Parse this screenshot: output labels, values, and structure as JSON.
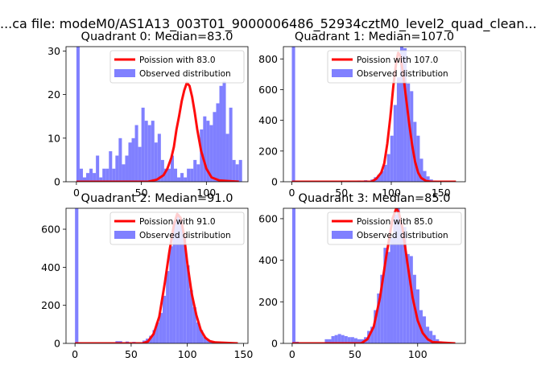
{
  "figure": {
    "suptitle": "...ca file: modeM0/AS1A13_003T01_9000006486_52934cztM0_level2_quad_clean..."
  },
  "colors": {
    "fit": "#ff0000",
    "observed": "#8080ff"
  },
  "chart_data": [
    {
      "type": "bar",
      "title": "Quadrant 0: Median=83.0",
      "xlabel": "",
      "ylabel": "",
      "xlim": [
        -8,
        132
      ],
      "ylim": [
        0,
        31
      ],
      "xticks": [
        0,
        50,
        100
      ],
      "yticks": [
        0,
        10,
        20,
        30
      ],
      "bin_width": 2.5,
      "legend": {
        "position": "top-right",
        "fit_label": "Poission with 83.0",
        "observed_label": "Observed distribution"
      },
      "series": [
        {
          "name": "Observed distribution",
          "kind": "hist",
          "bins": [
            [
              0,
              31
            ],
            [
              2.5,
              3
            ],
            [
              5,
              1
            ],
            [
              7.5,
              2
            ],
            [
              10,
              3
            ],
            [
              12.5,
              2
            ],
            [
              15,
              6
            ],
            [
              17.5,
              1
            ],
            [
              20,
              3
            ],
            [
              22.5,
              3
            ],
            [
              25,
              7
            ],
            [
              27.5,
              3
            ],
            [
              30,
              6
            ],
            [
              32.5,
              10
            ],
            [
              35,
              4
            ],
            [
              37.5,
              6
            ],
            [
              40,
              9
            ],
            [
              42.5,
              10
            ],
            [
              45,
              13
            ],
            [
              47.5,
              8
            ],
            [
              50,
              17
            ],
            [
              52.5,
              14
            ],
            [
              55,
              13
            ],
            [
              57.5,
              14
            ],
            [
              60,
              9
            ],
            [
              62.5,
              11
            ],
            [
              65,
              5
            ],
            [
              67.5,
              3
            ],
            [
              70,
              3
            ],
            [
              72.5,
              6
            ],
            [
              75,
              3
            ],
            [
              77.5,
              1
            ],
            [
              80,
              2
            ],
            [
              82.5,
              1
            ],
            [
              85,
              3
            ],
            [
              87.5,
              3
            ],
            [
              90,
              5
            ],
            [
              92.5,
              4
            ],
            [
              95,
              12
            ],
            [
              97.5,
              15
            ],
            [
              100,
              14
            ],
            [
              102.5,
              13
            ],
            [
              105,
              16
            ],
            [
              107.5,
              18
            ],
            [
              110,
              22
            ],
            [
              112.5,
              23
            ],
            [
              115,
              11
            ],
            [
              117.5,
              17
            ],
            [
              120,
              5
            ],
            [
              122.5,
              4
            ],
            [
              125,
              5
            ]
          ]
        },
        {
          "name": "Poission with 83.0",
          "kind": "line",
          "x": [
            0,
            55,
            62,
            67,
            70,
            73,
            75,
            77,
            79,
            81,
            83,
            85,
            87,
            89,
            91,
            93,
            96,
            100,
            104,
            110,
            125
          ],
          "y": [
            0,
            0,
            0.5,
            1.5,
            3,
            5.5,
            8,
            12,
            15,
            18.5,
            21,
            22.7,
            22,
            19.5,
            16,
            12,
            7,
            3,
            1,
            0.3,
            0
          ]
        }
      ]
    },
    {
      "type": "bar",
      "title": "Quadrant 1: Median=107.0",
      "xlabel": "",
      "ylabel": "",
      "xlim": [
        -8.5,
        174.5
      ],
      "ylim": [
        0,
        880
      ],
      "xticks": [
        0,
        50,
        100,
        150
      ],
      "yticks": [
        0,
        200,
        400,
        600,
        800
      ],
      "bin_width": 3.3,
      "legend": {
        "position": "top-right",
        "fit_label": "Poission with 107.0",
        "observed_label": "Observed distribution"
      },
      "series": [
        {
          "name": "Observed distribution",
          "kind": "hist",
          "bins": [
            [
              0,
              880
            ],
            [
              3.3,
              5
            ],
            [
              40,
              3
            ],
            [
              56,
              5
            ],
            [
              66,
              8
            ],
            [
              72.6,
              10
            ],
            [
              79.2,
              15
            ],
            [
              82.5,
              30
            ],
            [
              85.8,
              45
            ],
            [
              89.1,
              70
            ],
            [
              92.4,
              110
            ],
            [
              95.7,
              180
            ],
            [
              99,
              300
            ],
            [
              102.3,
              500
            ],
            [
              105.6,
              680
            ],
            [
              108.9,
              880
            ],
            [
              112.2,
              870
            ],
            [
              115.5,
              640
            ],
            [
              118.8,
              590
            ],
            [
              122.1,
              390
            ],
            [
              125.4,
              300
            ],
            [
              128.7,
              150
            ],
            [
              132,
              70
            ],
            [
              135.3,
              35
            ],
            [
              138.6,
              15
            ],
            [
              141.9,
              8
            ],
            [
              145.2,
              4
            ]
          ]
        },
        {
          "name": "Poission with 107.0",
          "kind": "line",
          "x": [
            0,
            80,
            85,
            90,
            93,
            96,
            99,
            102,
            105,
            107,
            109,
            112,
            115,
            118,
            121,
            124,
            127,
            130,
            135,
            140,
            165
          ],
          "y": [
            0,
            0,
            20,
            60,
            120,
            250,
            420,
            620,
            780,
            840,
            820,
            700,
            540,
            380,
            240,
            130,
            60,
            25,
            5,
            0,
            0
          ]
        }
      ]
    },
    {
      "type": "bar",
      "title": "Quadrant 2: Median=91.0",
      "xlabel": "",
      "ylabel": "",
      "xlim": [
        -8,
        154
      ],
      "ylim": [
        0,
        710
      ],
      "xticks": [
        0,
        50,
        100,
        150
      ],
      "yticks": [
        0,
        200,
        400,
        600
      ],
      "bin_width": 3,
      "legend": {
        "position": "top-right",
        "fit_label": "Poission with 91.0",
        "observed_label": "Observed distribution"
      },
      "series": [
        {
          "name": "Observed distribution",
          "kind": "hist",
          "bins": [
            [
              0,
              710
            ],
            [
              3,
              5
            ],
            [
              36,
              12
            ],
            [
              39,
              12
            ],
            [
              45,
              10
            ],
            [
              51,
              8
            ],
            [
              60,
              15
            ],
            [
              63,
              25
            ],
            [
              66,
              40
            ],
            [
              69,
              70
            ],
            [
              72,
              110
            ],
            [
              75,
              160
            ],
            [
              78,
              250
            ],
            [
              81,
              380
            ],
            [
              84,
              510
            ],
            [
              87,
              640
            ],
            [
              90,
              680
            ],
            [
              93,
              650
            ],
            [
              96,
              560
            ],
            [
              99,
              410
            ],
            [
              102,
              280
            ],
            [
              105,
              190
            ],
            [
              108,
              110
            ],
            [
              111,
              70
            ],
            [
              114,
              35
            ],
            [
              117,
              20
            ],
            [
              120,
              10
            ],
            [
              123,
              6
            ],
            [
              126,
              4
            ]
          ]
        },
        {
          "name": "Poission with 91.0",
          "kind": "line",
          "x": [
            0,
            60,
            65,
            70,
            75,
            80,
            84,
            88,
            91,
            94,
            97,
            100,
            104,
            108,
            112,
            116,
            120,
            125,
            145
          ],
          "y": [
            0,
            0,
            10,
            50,
            140,
            320,
            480,
            620,
            680,
            660,
            570,
            420,
            260,
            150,
            70,
            30,
            12,
            5,
            0
          ]
        }
      ]
    },
    {
      "type": "bar",
      "title": "Quadrant 3: Median=85.0",
      "xlabel": "",
      "ylabel": "",
      "xlim": [
        -7,
        138
      ],
      "ylim": [
        0,
        650
      ],
      "xticks": [
        0,
        50,
        100
      ],
      "yticks": [
        0,
        200,
        400,
        600
      ],
      "bin_width": 2.6,
      "legend": {
        "position": "top-right",
        "fit_label": "Poission with 85.0",
        "observed_label": "Observed distribution"
      },
      "series": [
        {
          "name": "Observed distribution",
          "kind": "hist",
          "bins": [
            [
              0,
              650
            ],
            [
              2.6,
              8
            ],
            [
              26,
              20
            ],
            [
              28.6,
              20
            ],
            [
              31.2,
              35
            ],
            [
              33.8,
              40
            ],
            [
              36.4,
              45
            ],
            [
              39,
              40
            ],
            [
              41.6,
              35
            ],
            [
              44.2,
              30
            ],
            [
              46.8,
              30
            ],
            [
              49.4,
              25
            ],
            [
              52,
              20
            ],
            [
              54.6,
              20
            ],
            [
              57.2,
              30
            ],
            [
              59.8,
              60
            ],
            [
              62.4,
              80
            ],
            [
              65,
              160
            ],
            [
              67.6,
              240
            ],
            [
              70.2,
              330
            ],
            [
              72.8,
              460
            ],
            [
              75.4,
              440
            ],
            [
              78,
              510
            ],
            [
              80.6,
              620
            ],
            [
              83.2,
              650
            ],
            [
              85.8,
              580
            ],
            [
              88.4,
              560
            ],
            [
              91,
              430
            ],
            [
              93.6,
              420
            ],
            [
              96.2,
              330
            ],
            [
              98.8,
              260
            ],
            [
              101.4,
              160
            ],
            [
              104,
              130
            ],
            [
              106.6,
              80
            ],
            [
              109.2,
              60
            ],
            [
              111.8,
              40
            ],
            [
              114.4,
              20
            ],
            [
              117,
              10
            ],
            [
              119.6,
              5
            ]
          ]
        },
        {
          "name": "Poission with 85.0",
          "kind": "line",
          "x": [
            0,
            55,
            60,
            65,
            70,
            75,
            80,
            83,
            85,
            88,
            92,
            96,
            100,
            104,
            108,
            112,
            130
          ],
          "y": [
            0,
            0,
            20,
            80,
            220,
            420,
            600,
            650,
            630,
            550,
            380,
            220,
            110,
            50,
            20,
            6,
            0
          ]
        }
      ]
    }
  ]
}
